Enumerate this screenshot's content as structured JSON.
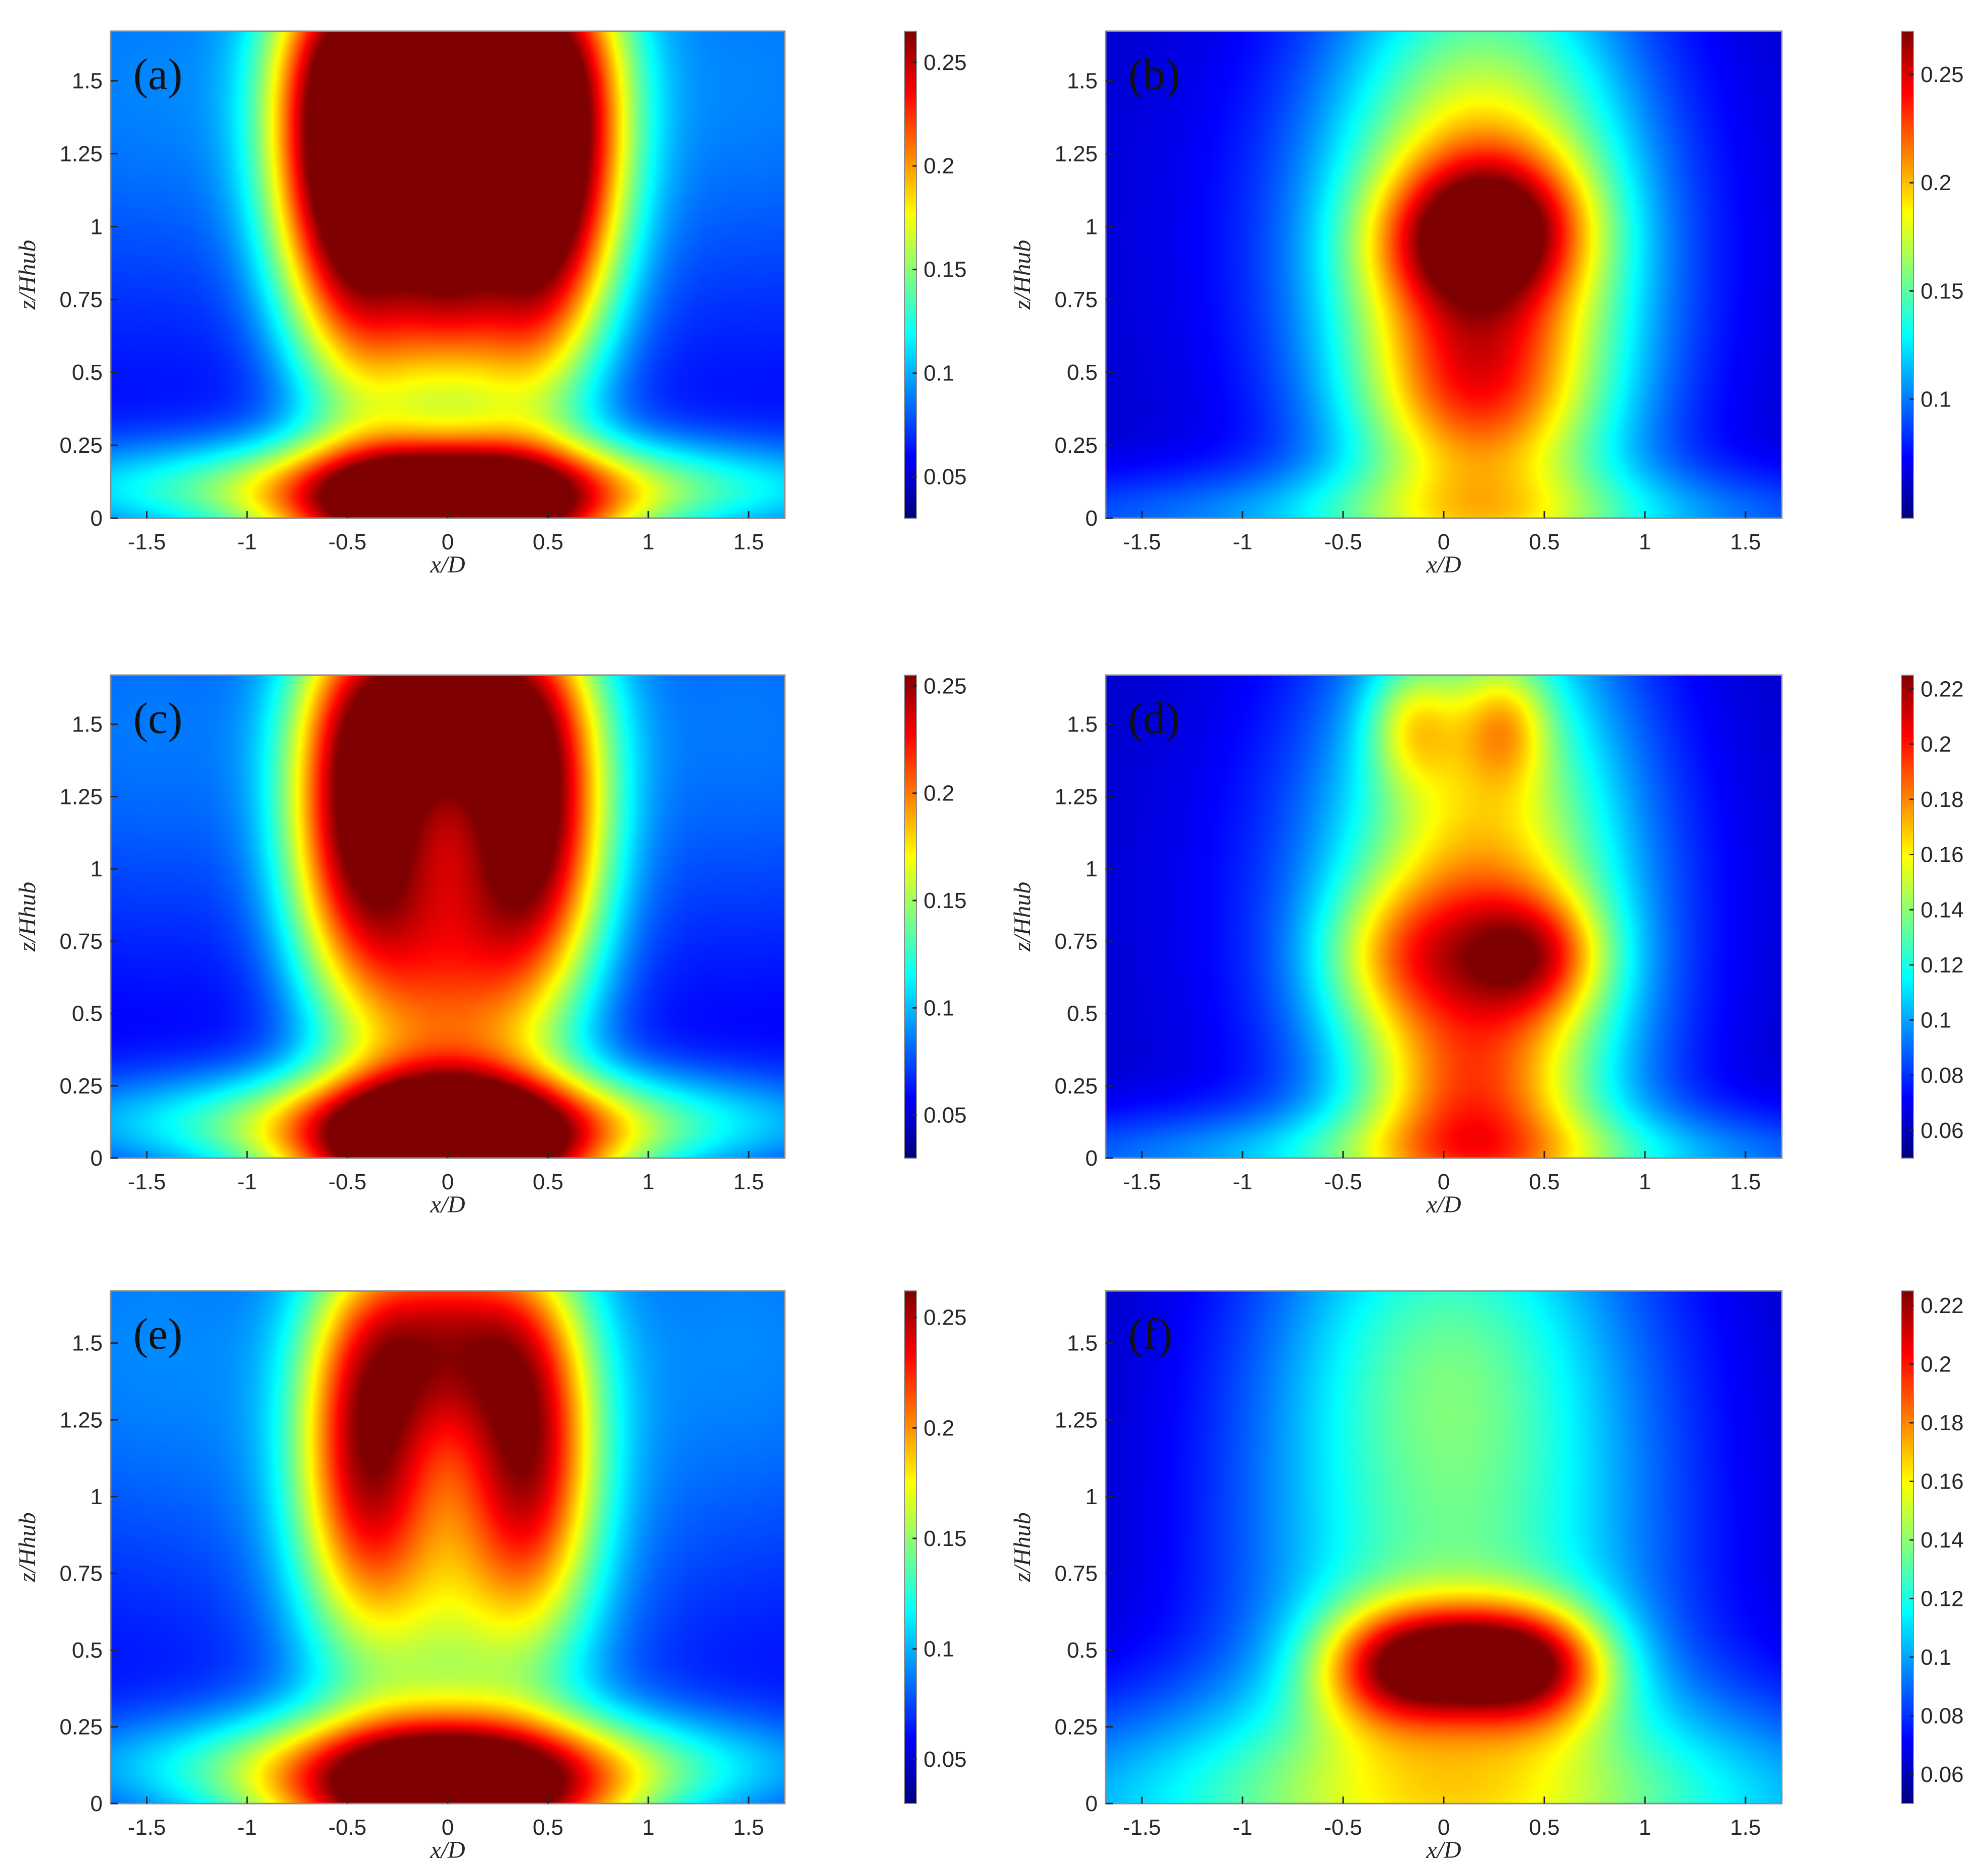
{
  "colors": {
    "jet": [
      "#00007f",
      "#0000ff",
      "#007fff",
      "#00ffff",
      "#7fff7f",
      "#ffff00",
      "#ff7f00",
      "#ff0000",
      "#7f0000"
    ]
  },
  "chart_data": [
    {
      "panel": "(a)",
      "type": "heatmap",
      "xlabel": "x/D",
      "ylabel": "z/Hhub",
      "xlim": [
        -1.68,
        1.68
      ],
      "ylim": [
        0,
        1.67
      ],
      "xticks": [
        "-1.5",
        "-1",
        "-0.5",
        "0",
        "0.5",
        "1",
        "1.5"
      ],
      "xtick_values": [
        -1.5,
        -1,
        -0.5,
        0,
        0.5,
        1,
        1.5
      ],
      "yticks": [
        "0",
        "0.25",
        "0.5",
        "0.75",
        "1",
        "1.25",
        "1.5"
      ],
      "ytick_values": [
        0,
        0.25,
        0.5,
        0.75,
        1,
        1.25,
        1.5
      ],
      "colorbar": {
        "min": 0.03,
        "max": 0.265,
        "ticks": [
          "0.05",
          "0.1",
          "0.15",
          "0.2",
          "0.25"
        ],
        "tick_values": [
          0.05,
          0.1,
          0.15,
          0.2,
          0.25
        ]
      },
      "background": 0.055,
      "field": [
        {
          "x": 0,
          "y": 0,
          "sx": 0.55,
          "sy": 0.17,
          "a": 0.21
        },
        {
          "x": 0,
          "y": 0.1,
          "sx": 1.5,
          "sy": 0.12,
          "a": 0.1
        },
        {
          "x": -0.55,
          "y": 1.35,
          "sx": 0.26,
          "sy": 0.45,
          "a": 0.175
        },
        {
          "x": 0.55,
          "y": 1.35,
          "sx": 0.26,
          "sy": 0.45,
          "a": 0.175
        },
        {
          "x": 0,
          "y": 1.6,
          "sx": 0.35,
          "sy": 0.22,
          "a": 0.17
        },
        {
          "x": -0.35,
          "y": 0.85,
          "sx": 0.28,
          "sy": 0.45,
          "a": 0.13
        },
        {
          "x": 0.35,
          "y": 0.85,
          "sx": 0.28,
          "sy": 0.45,
          "a": 0.13
        },
        {
          "x": 0,
          "y": 0.95,
          "sx": 0.18,
          "sy": 0.3,
          "a": 0.085
        },
        {
          "x": -1.5,
          "y": 1.5,
          "sx": 0.8,
          "sy": 0.6,
          "a": 0.035
        },
        {
          "x": 1.5,
          "y": 1.5,
          "sx": 0.8,
          "sy": 0.6,
          "a": 0.035
        }
      ]
    },
    {
      "panel": "(b)",
      "type": "heatmap",
      "xlabel": "x/D",
      "ylabel": "z/Hhub",
      "xlim": [
        -1.68,
        1.68
      ],
      "ylim": [
        0,
        1.67
      ],
      "xticks": [
        "-1.5",
        "-1",
        "-0.5",
        "0",
        "0.5",
        "1",
        "1.5"
      ],
      "xtick_values": [
        -1.5,
        -1,
        -0.5,
        0,
        0.5,
        1,
        1.5
      ],
      "yticks": [
        "0",
        "0.25",
        "0.5",
        "0.75",
        "1",
        "1.25",
        "1.5"
      ],
      "ytick_values": [
        0,
        0.25,
        0.5,
        0.75,
        1,
        1.25,
        1.5
      ],
      "colorbar": {
        "min": 0.045,
        "max": 0.27,
        "ticks": [
          "0.1",
          "0.15",
          "0.2",
          "0.25"
        ],
        "tick_values": [
          0.1,
          0.15,
          0.2,
          0.25
        ]
      },
      "background": 0.06,
      "field": [
        {
          "x": 0.2,
          "y": 0.8,
          "sx": 0.52,
          "sy": 0.75,
          "a": 0.15
        },
        {
          "x": 0.3,
          "y": 1.0,
          "sx": 0.3,
          "sy": 0.17,
          "a": 0.07
        },
        {
          "x": 0.0,
          "y": 0.95,
          "sx": 0.3,
          "sy": 0.17,
          "a": 0.045
        },
        {
          "x": 0.15,
          "y": 0.45,
          "sx": 0.35,
          "sy": 0.2,
          "a": 0.035
        },
        {
          "x": 0.0,
          "y": 0.0,
          "sx": 1.8,
          "sy": 0.12,
          "a": 0.045
        },
        {
          "x": 0.0,
          "y": 1.0,
          "sx": 1.0,
          "sy": 0.7,
          "a": 0.02
        }
      ]
    },
    {
      "panel": "(c)",
      "type": "heatmap",
      "xlabel": "x/D",
      "ylabel": "z/Hhub",
      "xlim": [
        -1.68,
        1.68
      ],
      "ylim": [
        0,
        1.67
      ],
      "xticks": [
        "-1.5",
        "-1",
        "-0.5",
        "0",
        "0.5",
        "1",
        "1.5"
      ],
      "xtick_values": [
        -1.5,
        -1,
        -0.5,
        0,
        0.5,
        1,
        1.5
      ],
      "yticks": [
        "0",
        "0.25",
        "0.5",
        "0.75",
        "1",
        "1.25",
        "1.5"
      ],
      "ytick_values": [
        0,
        0.25,
        0.5,
        0.75,
        1,
        1.25,
        1.5
      ],
      "colorbar": {
        "min": 0.03,
        "max": 0.255,
        "ticks": [
          "0.05",
          "0.1",
          "0.15",
          "0.2",
          "0.25"
        ],
        "tick_values": [
          0.05,
          0.1,
          0.15,
          0.2,
          0.25
        ]
      },
      "background": 0.05,
      "field": [
        {
          "x": 0,
          "y": 0,
          "sx": 0.55,
          "sy": 0.18,
          "a": 0.2
        },
        {
          "x": 0,
          "y": 0.12,
          "sx": 1.4,
          "sy": 0.13,
          "a": 0.09
        },
        {
          "x": -0.45,
          "y": 1.2,
          "sx": 0.26,
          "sy": 0.45,
          "a": 0.165
        },
        {
          "x": 0.45,
          "y": 1.2,
          "sx": 0.26,
          "sy": 0.45,
          "a": 0.165
        },
        {
          "x": 0,
          "y": 1.6,
          "sx": 0.35,
          "sy": 0.25,
          "a": 0.15
        },
        {
          "x": 0,
          "y": 0.65,
          "sx": 0.38,
          "sy": 0.5,
          "a": 0.13
        },
        {
          "x": -1.5,
          "y": 1.5,
          "sx": 0.8,
          "sy": 0.6,
          "a": 0.035
        },
        {
          "x": 1.5,
          "y": 1.5,
          "sx": 0.8,
          "sy": 0.6,
          "a": 0.035
        }
      ]
    },
    {
      "panel": "(d)",
      "type": "heatmap",
      "xlabel": "x/D",
      "ylabel": "z/Hhub",
      "xlim": [
        -1.68,
        1.68
      ],
      "ylim": [
        0,
        1.67
      ],
      "xticks": [
        "-1.5",
        "-1",
        "-0.5",
        "0",
        "0.5",
        "1",
        "1.5"
      ],
      "xtick_values": [
        -1.5,
        -1,
        -0.5,
        0,
        0.5,
        1,
        1.5
      ],
      "yticks": [
        "0",
        "0.25",
        "0.5",
        "0.75",
        "1",
        "1.25",
        "1.5"
      ],
      "ytick_values": [
        0,
        0.25,
        0.5,
        0.75,
        1,
        1.25,
        1.5
      ],
      "colorbar": {
        "min": 0.05,
        "max": 0.225,
        "ticks": [
          "0.06",
          "0.08",
          "0.1",
          "0.12",
          "0.14",
          "0.16",
          "0.18",
          "0.2",
          "0.22"
        ],
        "tick_values": [
          0.06,
          0.08,
          0.1,
          0.12,
          0.14,
          0.16,
          0.18,
          0.2,
          0.22
        ]
      },
      "background": 0.06,
      "field": [
        {
          "x": 0.2,
          "y": 0.7,
          "sx": 0.5,
          "sy": 0.85,
          "a": 0.1
        },
        {
          "x": 0.45,
          "y": 0.7,
          "sx": 0.25,
          "sy": 0.15,
          "a": 0.055
        },
        {
          "x": -0.2,
          "y": 0.7,
          "sx": 0.3,
          "sy": 0.18,
          "a": 0.04
        },
        {
          "x": -0.15,
          "y": 1.5,
          "sx": 0.16,
          "sy": 0.15,
          "a": 0.04
        },
        {
          "x": 0.3,
          "y": 1.5,
          "sx": 0.16,
          "sy": 0.15,
          "a": 0.04
        },
        {
          "x": 0.1,
          "y": 0.2,
          "sx": 0.35,
          "sy": 0.2,
          "a": 0.03
        },
        {
          "x": 0.0,
          "y": 0.0,
          "sx": 1.8,
          "sy": 0.12,
          "a": 0.04
        },
        {
          "x": 0.0,
          "y": 0.9,
          "sx": 1.0,
          "sy": 0.8,
          "a": 0.02
        }
      ]
    },
    {
      "panel": "(e)",
      "type": "heatmap",
      "xlabel": "x/D",
      "ylabel": "z/Hhub",
      "xlim": [
        -1.68,
        1.68
      ],
      "ylim": [
        0,
        1.67
      ],
      "xticks": [
        "-1.5",
        "-1",
        "-0.5",
        "0",
        "0.5",
        "1",
        "1.5"
      ],
      "xtick_values": [
        -1.5,
        -1,
        -0.5,
        0,
        0.5,
        1,
        1.5
      ],
      "yticks": [
        "0",
        "0.25",
        "0.5",
        "0.75",
        "1",
        "1.25",
        "1.5"
      ],
      "ytick_values": [
        0,
        0.25,
        0.5,
        0.75,
        1,
        1.25,
        1.5
      ],
      "colorbar": {
        "min": 0.03,
        "max": 0.262,
        "ticks": [
          "0.05",
          "0.1",
          "0.15",
          "0.2",
          "0.25"
        ],
        "tick_values": [
          0.05,
          0.1,
          0.15,
          0.2,
          0.25
        ]
      },
      "background": 0.055,
      "field": [
        {
          "x": 0,
          "y": 0,
          "sx": 0.6,
          "sy": 0.17,
          "a": 0.19
        },
        {
          "x": 0,
          "y": 0.12,
          "sx": 1.3,
          "sy": 0.13,
          "a": 0.085
        },
        {
          "x": -0.42,
          "y": 1.15,
          "sx": 0.24,
          "sy": 0.4,
          "a": 0.13
        },
        {
          "x": 0.42,
          "y": 1.15,
          "sx": 0.24,
          "sy": 0.4,
          "a": 0.13
        },
        {
          "x": 0,
          "y": 1.55,
          "sx": 0.35,
          "sy": 0.25,
          "a": 0.12
        },
        {
          "x": 0,
          "y": 0.75,
          "sx": 0.5,
          "sy": 0.55,
          "a": 0.09
        },
        {
          "x": -1.5,
          "y": 1.5,
          "sx": 0.8,
          "sy": 0.6,
          "a": 0.035
        },
        {
          "x": 1.5,
          "y": 1.5,
          "sx": 0.8,
          "sy": 0.6,
          "a": 0.035
        }
      ]
    },
    {
      "panel": "(f)",
      "type": "heatmap",
      "xlabel": "x/D",
      "ylabel": "z/Hhub",
      "xlim": [
        -1.68,
        1.68
      ],
      "ylim": [
        0,
        1.67
      ],
      "xticks": [
        "-1.5",
        "-1",
        "-0.5",
        "0",
        "0.5",
        "1",
        "1.5"
      ],
      "xtick_values": [
        -1.5,
        -1,
        -0.5,
        0,
        0.5,
        1,
        1.5
      ],
      "yticks": [
        "0",
        "0.25",
        "0.5",
        "0.75",
        "1",
        "1.25",
        "1.5"
      ],
      "ytick_values": [
        0,
        0.25,
        0.5,
        0.75,
        1,
        1.25,
        1.5
      ],
      "colorbar": {
        "min": 0.05,
        "max": 0.225,
        "ticks": [
          "0.06",
          "0.08",
          "0.1",
          "0.12",
          "0.14",
          "0.16",
          "0.18",
          "0.2",
          "0.22"
        ],
        "tick_values": [
          0.06,
          0.08,
          0.1,
          0.12,
          0.14,
          0.16,
          0.18,
          0.2,
          0.22
        ]
      },
      "background": 0.06,
      "field": [
        {
          "x": 0.05,
          "y": 0.9,
          "sx": 0.75,
          "sy": 0.95,
          "a": 0.072
        },
        {
          "x": 0.0,
          "y": 0.0,
          "sx": 1.9,
          "sy": 0.25,
          "a": 0.06
        },
        {
          "x": -0.25,
          "y": 0.45,
          "sx": 0.28,
          "sy": 0.14,
          "a": 0.085
        },
        {
          "x": 0.45,
          "y": 0.45,
          "sx": 0.28,
          "sy": 0.14,
          "a": 0.095
        },
        {
          "x": 0.1,
          "y": 0.48,
          "sx": 0.25,
          "sy": 0.12,
          "a": 0.05
        },
        {
          "x": 0.0,
          "y": 1.5,
          "sx": 0.5,
          "sy": 0.3,
          "a": 0.015
        }
      ]
    }
  ]
}
